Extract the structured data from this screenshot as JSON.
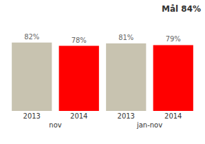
{
  "chart_data": {
    "type": "bar",
    "title": "Mål 84%",
    "categories": [
      "nov",
      "jan-nov"
    ],
    "series": [
      {
        "name": "2013",
        "color": "#c8c3b0",
        "values": [
          82,
          81
        ],
        "value_labels": [
          "82%",
          "81%"
        ]
      },
      {
        "name": "2014",
        "color": "#ff0000",
        "values": [
          78,
          79
        ],
        "value_labels": [
          "78%",
          "79%"
        ]
      }
    ],
    "ylim": [
      0,
      100
    ],
    "grid": false,
    "data_labels": true,
    "tick_labels": "x"
  }
}
